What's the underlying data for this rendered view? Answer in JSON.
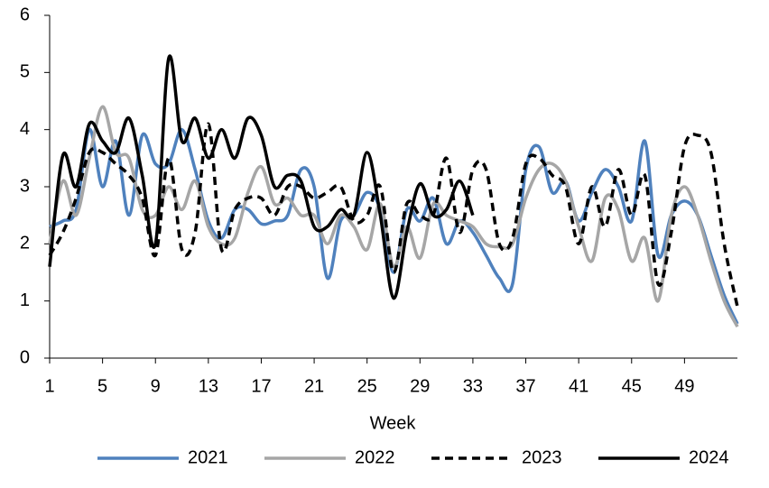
{
  "chart_data": {
    "type": "line",
    "x_label": "Week",
    "x": [
      1,
      2,
      3,
      4,
      5,
      6,
      7,
      8,
      9,
      10,
      11,
      12,
      13,
      14,
      15,
      16,
      17,
      18,
      19,
      20,
      21,
      22,
      23,
      24,
      25,
      26,
      27,
      28,
      29,
      30,
      31,
      32,
      33,
      34,
      35,
      36,
      37,
      38,
      39,
      40,
      41,
      42,
      43,
      44,
      45,
      46,
      47,
      48,
      49,
      50,
      51,
      52,
      53
    ],
    "xlim": [
      1,
      53
    ],
    "xticks": [
      1,
      5,
      9,
      13,
      17,
      21,
      25,
      29,
      33,
      37,
      41,
      45,
      49
    ],
    "ylim": [
      0,
      6
    ],
    "yticks": [
      0,
      1,
      2,
      3,
      4,
      5,
      6
    ],
    "series": [
      {
        "name": "2021",
        "color": "#4f81bd",
        "dash": "solid",
        "values": [
          2.3,
          2.4,
          2.6,
          4.0,
          3.0,
          3.8,
          2.5,
          3.9,
          3.4,
          3.4,
          4.0,
          3.3,
          2.4,
          2.1,
          2.6,
          2.6,
          2.35,
          2.4,
          2.5,
          3.3,
          3.0,
          1.4,
          2.4,
          2.5,
          2.9,
          2.6,
          1.5,
          2.6,
          2.4,
          2.8,
          2.0,
          2.4,
          2.2,
          1.8,
          1.4,
          1.3,
          3.3,
          3.7,
          2.9,
          3.1,
          2.4,
          2.9,
          3.3,
          3.0,
          2.4,
          3.8,
          1.8,
          2.5,
          2.75,
          2.5,
          1.8,
          1.1,
          0.6
        ]
      },
      {
        "name": "2022",
        "color": "#a6a6a6",
        "dash": "solid",
        "values": [
          2.0,
          3.1,
          2.5,
          3.5,
          4.4,
          3.6,
          3.5,
          2.6,
          2.5,
          3.0,
          2.6,
          3.1,
          2.3,
          2.0,
          2.1,
          2.9,
          3.35,
          2.7,
          2.8,
          2.5,
          2.5,
          2.0,
          2.5,
          2.3,
          1.9,
          2.7,
          1.6,
          2.3,
          1.75,
          2.7,
          2.5,
          2.4,
          2.3,
          2.0,
          1.95,
          2.0,
          2.8,
          3.3,
          3.4,
          3.1,
          2.3,
          1.7,
          2.8,
          2.6,
          1.7,
          2.1,
          1.0,
          2.5,
          3.0,
          2.5,
          1.7,
          1.0,
          0.55
        ]
      },
      {
        "name": "2023",
        "color": "#000000",
        "dash": "dashed",
        "values": [
          1.8,
          2.2,
          2.8,
          3.6,
          3.6,
          3.4,
          3.2,
          2.8,
          1.8,
          3.5,
          1.9,
          2.2,
          4.1,
          1.9,
          2.6,
          2.8,
          2.8,
          2.5,
          3.0,
          3.0,
          2.8,
          2.9,
          3.0,
          2.4,
          2.5,
          3.0,
          1.5,
          2.7,
          2.5,
          2.5,
          3.5,
          2.2,
          3.3,
          3.3,
          2.0,
          2.1,
          3.4,
          3.5,
          3.2,
          3.0,
          2.0,
          3.0,
          2.3,
          3.3,
          2.5,
          3.2,
          1.3,
          2.2,
          3.7,
          3.9,
          3.6,
          2.0,
          0.9
        ]
      },
      {
        "name": "2024",
        "color": "#000000",
        "dash": "solid",
        "values": [
          1.6,
          3.55,
          3.0,
          4.1,
          3.8,
          3.6,
          4.2,
          3.2,
          2.0,
          5.25,
          3.8,
          4.2,
          3.5,
          4.0,
          3.5,
          4.2,
          3.9,
          3.0,
          3.2,
          3.1,
          2.3,
          2.3,
          2.6,
          2.5,
          3.6,
          2.5,
          1.05,
          2.2,
          3.05,
          2.5,
          2.6,
          3.1,
          2.5,
          null,
          null,
          null,
          null,
          null,
          null,
          null,
          null,
          null,
          null,
          null,
          null,
          null,
          null,
          null,
          null,
          null,
          null,
          null,
          null
        ]
      }
    ]
  }
}
